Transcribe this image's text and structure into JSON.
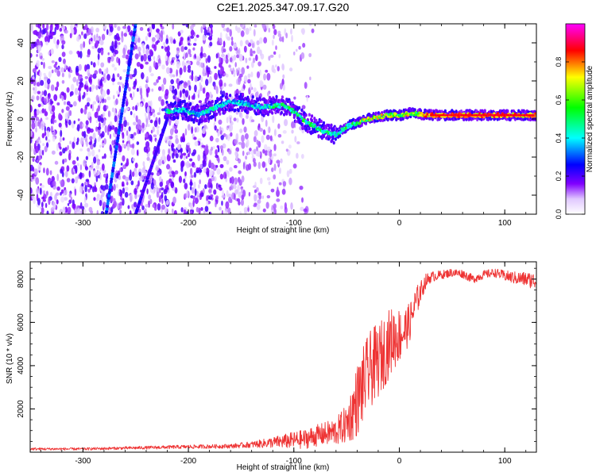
{
  "title": "C2E1.2025.347.09.17.G20",
  "chart_data": [
    {
      "type": "heatmap",
      "panel": "spectrogram",
      "xlabel": "Height of straight line (km)",
      "ylabel": "Frequency (Hz)",
      "xlim": [
        -350,
        130
      ],
      "ylim": [
        -50,
        50
      ],
      "xticks": [
        -300,
        -200,
        -100,
        0,
        100
      ],
      "xtick_labels": [
        "-300",
        "-200",
        "-100",
        "0",
        "100"
      ],
      "yticks": [
        -40,
        -20,
        0,
        20,
        40
      ],
      "ytick_labels": [
        "-40",
        "-20",
        "0",
        "20",
        "40"
      ],
      "colorbar": {
        "label": "Normalized spectral amplitude",
        "range": [
          0,
          1
        ],
        "ticks": [
          0.0,
          0.2,
          0.4,
          0.6,
          0.8
        ],
        "tick_labels": [
          "0.0",
          "0.2",
          "0.4",
          "0.6",
          "0.8"
        ],
        "colors": [
          "#ffffff",
          "#8000ff",
          "#0000ff",
          "#00ffff",
          "#00ff00",
          "#ffff00",
          "#ff0000",
          "#ff00ff"
        ]
      },
      "ridge": {
        "name": "Main spectral line (frequency vs height)",
        "x": [
          -220,
          -205,
          -190,
          -175,
          -160,
          -145,
          -130,
          -120,
          -110,
          -100,
          -90,
          -80,
          -70,
          -60,
          -50,
          -40,
          -30,
          -20,
          -10,
          0,
          10,
          30,
          60,
          90,
          110,
          130
        ],
        "y": [
          4,
          5,
          2,
          6,
          9,
          8,
          6,
          7,
          7,
          4,
          -1,
          -4,
          -7,
          -8,
          -4,
          -2,
          0,
          1,
          2,
          2,
          3,
          2,
          2,
          2,
          2,
          2
        ]
      },
      "lines": [
        {
          "name": "steep line 1",
          "x": [
            -278,
            -250
          ],
          "y": [
            -50,
            50
          ]
        },
        {
          "name": "steep line 2",
          "x": [
            -250,
            -220
          ],
          "y": [
            -50,
            0
          ]
        }
      ]
    },
    {
      "type": "line",
      "panel": "snr",
      "xlabel": "Height of straight line (km)",
      "ylabel": "SNR (10 * v/v)",
      "xlim": [
        -350,
        130
      ],
      "ylim": [
        0,
        8800
      ],
      "xticks": [
        -300,
        -200,
        -100,
        0,
        100
      ],
      "xtick_labels": [
        "-300",
        "-200",
        "-100",
        "0",
        "100"
      ],
      "yticks": [
        2000,
        4000,
        6000,
        8000
      ],
      "ytick_labels": [
        "2000",
        "4000",
        "6000",
        "8000"
      ],
      "series": [
        {
          "name": "SNR",
          "color": "#ee3333",
          "x": [
            -350,
            -300,
            -250,
            -200,
            -160,
            -140,
            -120,
            -100,
            -90,
            -80,
            -70,
            -60,
            -50,
            -45,
            -40,
            -35,
            -30,
            -25,
            -20,
            -15,
            -10,
            -5,
            0,
            5,
            10,
            15,
            20,
            25,
            30,
            40,
            50,
            60,
            70,
            80,
            90,
            100,
            110,
            120,
            130
          ],
          "values": [
            150,
            150,
            200,
            250,
            280,
            350,
            450,
            550,
            600,
            750,
            850,
            950,
            1300,
            1800,
            2400,
            3000,
            3600,
            4000,
            4200,
            4600,
            5000,
            5300,
            5400,
            5600,
            6000,
            6800,
            7400,
            7900,
            8100,
            8200,
            8300,
            8250,
            8000,
            8200,
            8300,
            8150,
            8050,
            8000,
            7900
          ],
          "noise_amplitude": [
            60,
            60,
            70,
            90,
            100,
            150,
            250,
            400,
            450,
            500,
            550,
            650,
            900,
            1300,
            1700,
            1800,
            1800,
            1800,
            1700,
            1700,
            1600,
            1500,
            1300,
            1100,
            900,
            800,
            500,
            350,
            250,
            200,
            200,
            200,
            200,
            200,
            200,
            250,
            300,
            350,
            400
          ]
        }
      ]
    }
  ]
}
